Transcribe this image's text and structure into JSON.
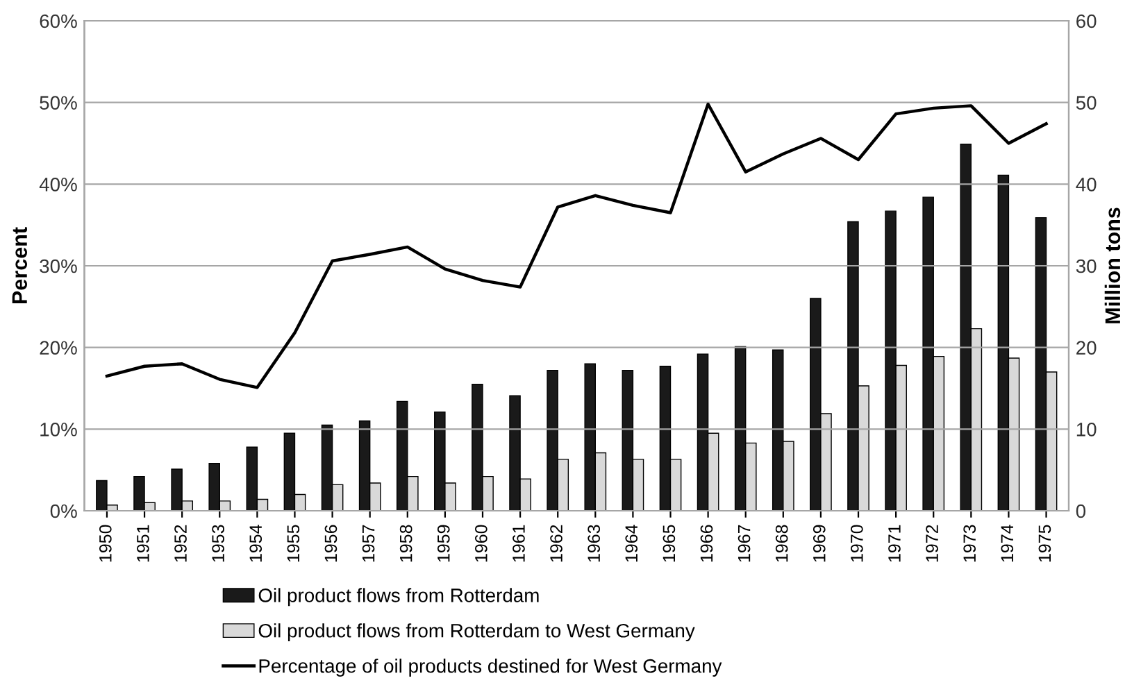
{
  "chart_data": {
    "type": "bar",
    "ylabel": "Percent",
    "y2label": "Million tons",
    "categories": [
      "1950",
      "1951",
      "1952",
      "1953",
      "1954",
      "1955",
      "1956",
      "1957",
      "1958",
      "1959",
      "1960",
      "1961",
      "1962",
      "1963",
      "1964",
      "1965",
      "1966",
      "1967",
      "1968",
      "1969",
      "1970",
      "1971",
      "1972",
      "1973",
      "1974",
      "1975"
    ],
    "series": [
      {
        "name": "Oil product flows from Rotterdam",
        "axis": "y2",
        "color": "#1a1a1a",
        "values": [
          3.7,
          4.2,
          5.1,
          5.8,
          7.8,
          9.5,
          10.5,
          11.0,
          13.4,
          12.1,
          15.5,
          14.1,
          17.2,
          18.0,
          17.2,
          17.7,
          19.2,
          20.1,
          19.7,
          26.0,
          35.4,
          36.7,
          38.4,
          44.9,
          41.1,
          35.9
        ]
      },
      {
        "name": "Oil product flows from Rotterdam to West Germany",
        "axis": "y2",
        "color": "#d9d9d9",
        "values": [
          0.7,
          1.0,
          1.2,
          1.2,
          1.4,
          2.0,
          3.2,
          3.4,
          4.2,
          3.4,
          4.2,
          3.9,
          6.3,
          7.1,
          6.3,
          6.3,
          9.5,
          8.3,
          8.5,
          11.9,
          15.3,
          17.8,
          18.9,
          22.3,
          18.7,
          17.0
        ]
      },
      {
        "name": "Percentage of oil products destined for West Germany",
        "type": "line",
        "axis": "y",
        "color": "#000000",
        "values": [
          16.5,
          17.7,
          18.0,
          16.1,
          15.1,
          21.8,
          30.6,
          31.4,
          32.3,
          29.6,
          28.2,
          27.4,
          37.2,
          38.6,
          37.4,
          36.5,
          49.8,
          41.5,
          43.7,
          45.6,
          43.0,
          48.6,
          49.3,
          49.6,
          45.0,
          47.4
        ]
      }
    ],
    "ylim": [
      0,
      60
    ],
    "yticks": [
      {
        "value": 0,
        "label": "0%"
      },
      {
        "value": 10,
        "label": "10%"
      },
      {
        "value": 20,
        "label": "20%"
      },
      {
        "value": 30,
        "label": "30%"
      },
      {
        "value": 40,
        "label": "40%"
      },
      {
        "value": 50,
        "label": "50%"
      },
      {
        "value": 60,
        "label": "60%"
      }
    ],
    "y2lim": [
      0,
      60
    ],
    "y2ticks": [
      0,
      10,
      20,
      30,
      40,
      50,
      60
    ],
    "grid": "y",
    "legend": "bottom",
    "marker": "none",
    "line_style": "solid"
  }
}
